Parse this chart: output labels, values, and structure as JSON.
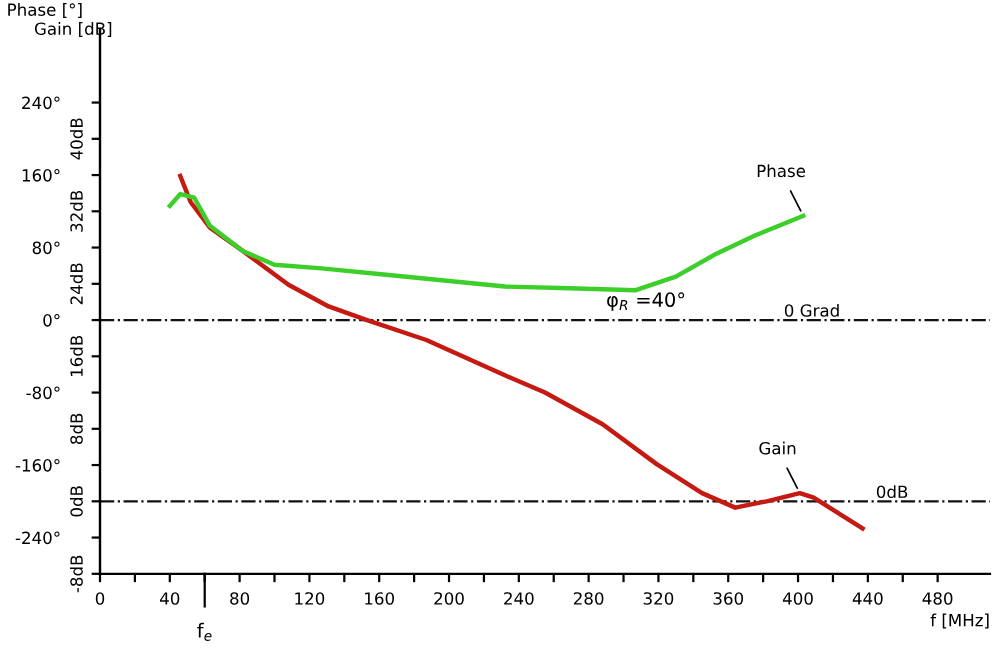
{
  "chart_data": {
    "type": "line",
    "xlabel": "f [MHz]",
    "ylabel": "Gain [dB]",
    "y2label": "Phase [°]",
    "xlim": [
      0,
      510
    ],
    "xticks": [
      0,
      {
        "value": 20,
        "label": null
      },
      40,
      {
        "value": 60,
        "label": null
      },
      80,
      {
        "value": 100,
        "label": null
      },
      120,
      {
        "value": 140,
        "label": null
      },
      160,
      {
        "value": 180,
        "label": null
      },
      200,
      {
        "value": 220,
        "label": null
      },
      240,
      {
        "value": 260,
        "label": null
      },
      280,
      {
        "value": 300,
        "label": null
      },
      320,
      {
        "value": 340,
        "label": null
      },
      360,
      {
        "value": 380,
        "label": null
      },
      400,
      {
        "value": 420,
        "label": null
      },
      440,
      {
        "value": 460,
        "label": null
      },
      480
    ],
    "ylim": [
      -8,
      52
    ],
    "yticks": [
      {
        "value": -8,
        "label": "-8dB"
      },
      {
        "value": -4,
        "label": null
      },
      {
        "value": 0,
        "label": "0dB"
      },
      {
        "value": 4,
        "label": null
      },
      {
        "value": 8,
        "label": "8dB"
      },
      {
        "value": 12,
        "label": null
      },
      {
        "value": 16,
        "label": "16dB"
      },
      {
        "value": 20,
        "label": null
      },
      {
        "value": 24,
        "label": "24dB"
      },
      {
        "value": 28,
        "label": null
      },
      {
        "value": 32,
        "label": "32dB"
      },
      {
        "value": 36,
        "label": null
      },
      {
        "value": 40,
        "label": "40dB"
      },
      {
        "value": 44,
        "label": null
      }
    ],
    "y2lim": [
      -280,
      320
    ],
    "y2ticks": [
      {
        "value": -240,
        "label": "-240°"
      },
      {
        "value": -160,
        "label": "-160°"
      },
      {
        "value": -80,
        "label": "-80°"
      },
      {
        "value": 0,
        "label": "0°"
      },
      {
        "value": 80,
        "label": "80°"
      },
      {
        "value": 160,
        "label": "160°"
      },
      {
        "value": 240,
        "label": "240°"
      }
    ],
    "grid": false,
    "marker": "none",
    "line_style": "solid",
    "series": [
      {
        "name": "Phase",
        "color": "#3ccf2a",
        "axis": "y2",
        "x": [
          40,
          46,
          54,
          63,
          82,
          100,
          127,
          164,
          232,
          269,
          307,
          330,
          352,
          375,
          403
        ],
        "values": [
          126,
          139,
          135,
          104,
          76,
          61,
          57,
          50,
          37,
          35,
          33,
          48,
          72,
          93,
          115
        ]
      },
      {
        "name": "Gain",
        "color": "#c41a12",
        "x": [
          46,
          52,
          63,
          82,
          108,
          131,
          153,
          187,
          232,
          255,
          288,
          319,
          345,
          364,
          382,
          401,
          409,
          437
        ],
        "values": [
          35.9,
          33.0,
          30.2,
          27.6,
          23.9,
          21.5,
          20.0,
          17.8,
          13.9,
          12.0,
          8.5,
          4.1,
          0.9,
          -0.7,
          0.0,
          0.9,
          0.4,
          -3.0
        ]
      }
    ],
    "ref_lines": [
      {
        "axis": "y",
        "value": 20,
        "label": "0 Grad",
        "line_style": "dashdot",
        "color": "#111111"
      },
      {
        "axis": "y",
        "value": 0,
        "label": "0dB",
        "line_style": "dashdot",
        "color": "#111111"
      }
    ],
    "annotations": [
      {
        "text": "φ$_{R}$ =40°",
        "x": 290,
        "y": 21
      },
      {
        "text": "f$_{e}$",
        "x": 60
      }
    ]
  }
}
